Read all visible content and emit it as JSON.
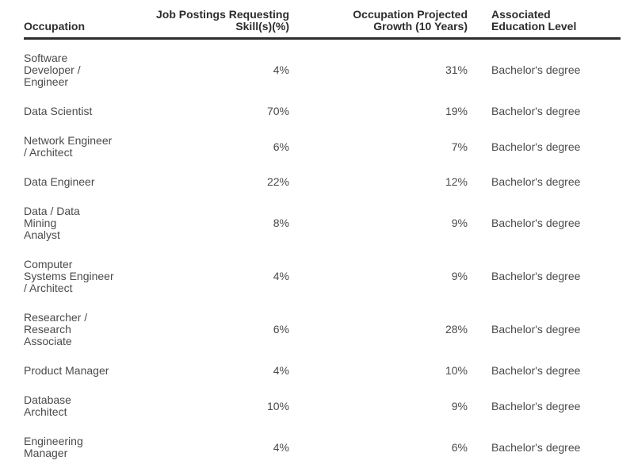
{
  "table": {
    "columns": [
      {
        "label": "Occupation",
        "align": "left"
      },
      {
        "label": "Job Postings Requesting\nSkill(s)(%)",
        "align": "right"
      },
      {
        "label": "Occupation Projected\nGrowth (10 Years)",
        "align": "right"
      },
      {
        "label": "Associated\nEducation Level",
        "align": "left"
      }
    ],
    "rows": [
      {
        "occupation": "Software\nDeveloper /\nEngineer",
        "job_postings_pct": "4%",
        "projected_growth_pct": "31%",
        "education_level": "Bachelor's degree"
      },
      {
        "occupation": "Data Scientist",
        "job_postings_pct": "70%",
        "projected_growth_pct": "19%",
        "education_level": "Bachelor's degree"
      },
      {
        "occupation": "Network Engineer\n/ Architect",
        "job_postings_pct": "6%",
        "projected_growth_pct": "7%",
        "education_level": "Bachelor's degree"
      },
      {
        "occupation": "Data Engineer",
        "job_postings_pct": "22%",
        "projected_growth_pct": "12%",
        "education_level": "Bachelor's degree"
      },
      {
        "occupation": "Data / Data Mining\nAnalyst",
        "job_postings_pct": "8%",
        "projected_growth_pct": "9%",
        "education_level": "Bachelor's degree"
      },
      {
        "occupation": "Computer\nSystems Engineer\n/ Architect",
        "job_postings_pct": "4%",
        "projected_growth_pct": "9%",
        "education_level": "Bachelor's degree"
      },
      {
        "occupation": "Researcher /\nResearch\nAssociate",
        "job_postings_pct": "6%",
        "projected_growth_pct": "28%",
        "education_level": "Bachelor's degree"
      },
      {
        "occupation": "Product Manager",
        "job_postings_pct": "4%",
        "projected_growth_pct": "10%",
        "education_level": "Bachelor's degree"
      },
      {
        "occupation": "Database\nArchitect",
        "job_postings_pct": "10%",
        "projected_growth_pct": "9%",
        "education_level": "Bachelor's degree"
      },
      {
        "occupation": "Engineering\nManager",
        "job_postings_pct": "4%",
        "projected_growth_pct": "6%",
        "education_level": "Bachelor's degree"
      }
    ]
  },
  "colors": {
    "header_text": "#2d2d2d",
    "body_text": "#4a4a4a",
    "header_rule": "#2d2d2d",
    "background": "#ffffff"
  }
}
